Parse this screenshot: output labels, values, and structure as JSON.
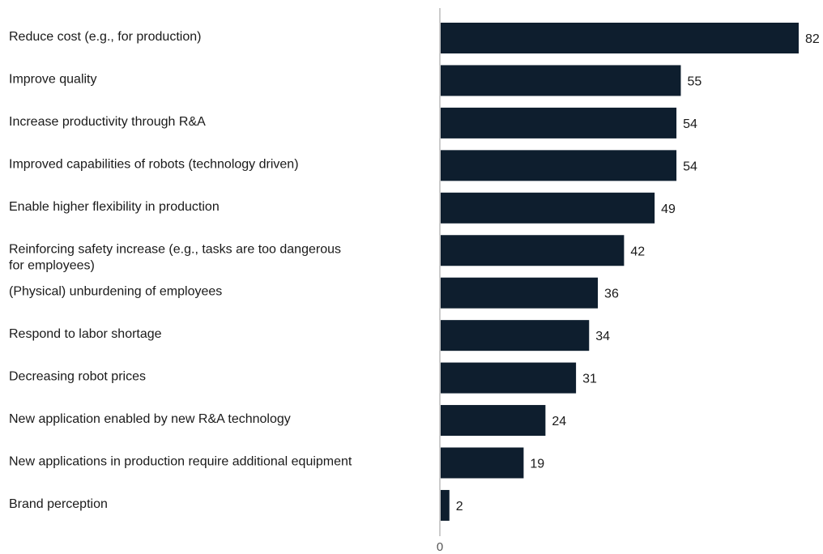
{
  "chart_data": {
    "type": "bar",
    "orientation": "horizontal",
    "categories": [
      [
        "Reduce cost (e.g., for production)"
      ],
      [
        "Improve quality"
      ],
      [
        "Increase productivity through R&A"
      ],
      [
        "Improved capabilities of robots (technology driven)"
      ],
      [
        "Enable higher flexibility in production"
      ],
      [
        "Reinforcing safety increase (e.g., tasks are too dangerous",
        "for employees)"
      ],
      [
        "(Physical) unburdening of employees"
      ],
      [
        "Respond to labor shortage"
      ],
      [
        "Decreasing robot prices"
      ],
      [
        "New application enabled by new R&A technology"
      ],
      [
        "New applications in production require additional equipment"
      ],
      [
        "Brand perception"
      ]
    ],
    "values": [
      82,
      55,
      54,
      54,
      49,
      42,
      36,
      34,
      31,
      24,
      19,
      2
    ],
    "xlim": [
      0,
      82
    ],
    "x_ticks": [
      "0"
    ],
    "grid": false,
    "colors": {
      "bar": "#0e1e2e",
      "axis": "#999999",
      "text": "#1a1a1a"
    }
  }
}
